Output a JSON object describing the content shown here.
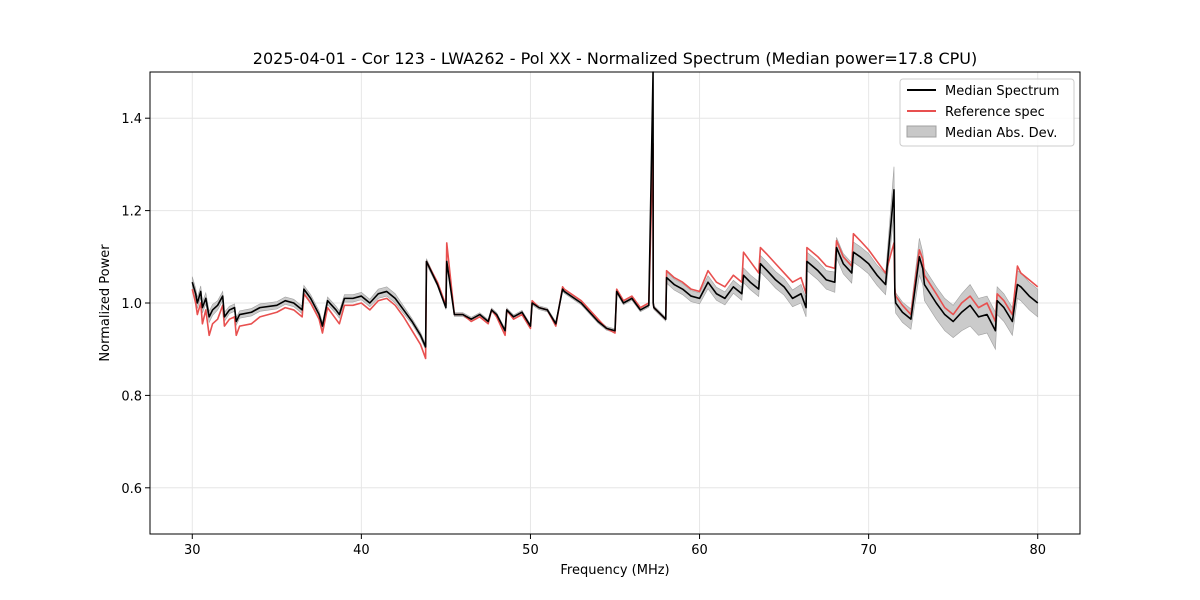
{
  "chart_data": {
    "type": "line",
    "title": "2025-04-01 - Cor 123 - LWA262 - Pol XX - Normalized Spectrum (Median power=17.8 CPU)",
    "xlabel": "Frequency (MHz)",
    "ylabel": "Normalized Power",
    "xlim": [
      27.5,
      82.5
    ],
    "ylim": [
      0.5,
      1.5
    ],
    "xticks": [
      30,
      40,
      50,
      60,
      70,
      80
    ],
    "yticks": [
      0.6,
      0.8,
      1.0,
      1.2,
      1.4
    ],
    "xtick_labels": [
      "30",
      "40",
      "50",
      "60",
      "70",
      "80"
    ],
    "ytick_labels": [
      "0.6",
      "0.8",
      "1.0",
      "1.2",
      "1.4"
    ],
    "grid": true,
    "legend_position": "top-right",
    "legend": [
      "Median Spectrum",
      "Reference spec",
      "Median Abs. Dev."
    ],
    "colors": {
      "median": "#000000",
      "reference": "#e8504f",
      "mad_fill": "#c8c8c8",
      "mad_edge": "#a0a0a0",
      "grid": "#e6e6e6"
    },
    "series": [
      {
        "name": "Median Spectrum",
        "x": [
          30.0,
          30.2,
          30.3,
          30.5,
          30.6,
          30.8,
          31.0,
          31.2,
          31.5,
          31.8,
          31.9,
          32.2,
          32.5,
          32.6,
          32.8,
          33.5,
          34.0,
          35.0,
          35.5,
          36.0,
          36.5,
          36.6,
          37.0,
          37.5,
          37.7,
          38.0,
          38.5,
          38.7,
          39.0,
          39.5,
          40.0,
          40.5,
          41.0,
          41.5,
          42.0,
          42.5,
          43.0,
          43.5,
          43.8,
          43.85,
          44.5,
          45.0,
          45.05,
          45.5,
          46.0,
          46.5,
          47.0,
          47.5,
          47.7,
          48.0,
          48.5,
          48.6,
          49.0,
          49.5,
          50.0,
          50.1,
          50.5,
          51.0,
          51.5,
          51.9,
          52.0,
          53.0,
          54.0,
          54.5,
          55.0,
          55.1,
          55.5,
          56.0,
          56.5,
          57.0,
          57.25,
          57.26,
          57.3,
          58.0,
          58.05,
          58.5,
          59.0,
          59.5,
          60.0,
          60.5,
          61.0,
          61.5,
          62.0,
          62.5,
          62.6,
          63.0,
          63.5,
          63.6,
          64.0,
          64.5,
          65.0,
          65.5,
          66.0,
          66.3,
          66.35,
          67.0,
          67.5,
          68.0,
          68.1,
          68.5,
          69.0,
          69.1,
          69.5,
          70.0,
          70.5,
          71.0,
          71.5,
          71.55,
          71.6,
          72.0,
          72.5,
          73.0,
          73.2,
          73.3,
          74.0,
          74.5,
          75.0,
          75.5,
          76.0,
          76.5,
          77.0,
          77.5,
          77.6,
          78.0,
          78.5,
          78.8,
          79.0,
          79.5,
          80.0
        ],
        "values": [
          1.045,
          1.02,
          1.0,
          1.025,
          0.99,
          1.01,
          0.97,
          0.985,
          0.995,
          1.015,
          0.97,
          0.985,
          0.99,
          0.96,
          0.975,
          0.98,
          0.99,
          0.995,
          1.005,
          1.0,
          0.985,
          1.03,
          1.01,
          0.975,
          0.95,
          1.005,
          0.985,
          0.975,
          1.01,
          1.01,
          1.015,
          1.0,
          1.02,
          1.025,
          1.01,
          0.985,
          0.96,
          0.93,
          0.905,
          1.09,
          1.04,
          0.99,
          1.09,
          0.975,
          0.975,
          0.965,
          0.975,
          0.96,
          0.985,
          0.975,
          0.94,
          0.985,
          0.97,
          0.98,
          0.95,
          1.0,
          0.99,
          0.985,
          0.955,
          1.03,
          1.025,
          1.0,
          0.96,
          0.945,
          0.94,
          1.025,
          1.0,
          1.01,
          0.985,
          0.995,
          1.5,
          1.0,
          0.99,
          0.965,
          1.055,
          1.04,
          1.03,
          1.015,
          1.01,
          1.045,
          1.02,
          1.01,
          1.035,
          1.02,
          1.06,
          1.045,
          1.03,
          1.085,
          1.07,
          1.05,
          1.035,
          1.01,
          1.02,
          0.99,
          1.09,
          1.07,
          1.05,
          1.045,
          1.12,
          1.085,
          1.065,
          1.11,
          1.1,
          1.085,
          1.06,
          1.04,
          1.245,
          1.02,
          1.0,
          0.98,
          0.965,
          1.1,
          1.075,
          1.04,
          1.0,
          0.975,
          0.96,
          0.98,
          0.995,
          0.97,
          0.975,
          0.94,
          1.005,
          0.99,
          0.96,
          1.04,
          1.035,
          1.015,
          1.0
        ]
      },
      {
        "name": "Reference spec",
        "x": [
          30.0,
          30.2,
          30.3,
          30.5,
          30.6,
          30.8,
          31.0,
          31.2,
          31.5,
          31.8,
          31.9,
          32.2,
          32.5,
          32.6,
          32.8,
          33.5,
          34.0,
          35.0,
          35.5,
          36.0,
          36.5,
          36.6,
          37.0,
          37.5,
          37.7,
          38.0,
          38.5,
          38.7,
          39.0,
          39.5,
          40.0,
          40.5,
          41.0,
          41.5,
          42.0,
          42.5,
          43.0,
          43.5,
          43.8,
          43.85,
          44.5,
          45.0,
          45.05,
          45.5,
          46.0,
          46.5,
          47.0,
          47.5,
          47.7,
          48.0,
          48.5,
          48.6,
          49.0,
          49.5,
          50.0,
          50.1,
          50.5,
          51.0,
          51.5,
          51.9,
          52.0,
          53.0,
          54.0,
          54.5,
          55.0,
          55.1,
          55.5,
          56.0,
          56.5,
          57.0,
          57.25,
          57.26,
          57.3,
          58.0,
          58.05,
          58.5,
          59.0,
          59.5,
          60.0,
          60.5,
          61.0,
          61.5,
          62.0,
          62.5,
          62.6,
          63.0,
          63.5,
          63.6,
          64.0,
          64.5,
          65.0,
          65.5,
          66.0,
          66.3,
          66.35,
          67.0,
          67.5,
          68.0,
          68.1,
          68.5,
          69.0,
          69.1,
          69.5,
          70.0,
          70.5,
          71.0,
          71.5,
          71.55,
          71.6,
          72.0,
          72.5,
          73.0,
          73.2,
          73.3,
          74.0,
          74.5,
          75.0,
          75.5,
          76.0,
          76.5,
          77.0,
          77.5,
          77.6,
          78.0,
          78.5,
          78.8,
          79.0,
          79.5,
          80.0
        ],
        "values": [
          1.03,
          1.0,
          0.975,
          1.0,
          0.955,
          0.985,
          0.93,
          0.955,
          0.965,
          0.995,
          0.95,
          0.965,
          0.97,
          0.93,
          0.95,
          0.955,
          0.97,
          0.98,
          0.99,
          0.985,
          0.97,
          1.02,
          1.0,
          0.965,
          0.935,
          0.99,
          0.965,
          0.955,
          0.995,
          0.995,
          1.0,
          0.985,
          1.005,
          1.01,
          0.995,
          0.97,
          0.94,
          0.91,
          0.88,
          1.09,
          1.045,
          0.995,
          1.13,
          0.975,
          0.975,
          0.96,
          0.97,
          0.955,
          0.985,
          0.97,
          0.93,
          0.985,
          0.965,
          0.975,
          0.945,
          1.005,
          0.99,
          0.985,
          0.95,
          1.035,
          1.03,
          1.005,
          0.965,
          0.945,
          0.935,
          1.03,
          1.005,
          1.015,
          0.99,
          1.0,
          1.345,
          1.0,
          0.99,
          0.965,
          1.07,
          1.055,
          1.045,
          1.03,
          1.025,
          1.07,
          1.045,
          1.035,
          1.06,
          1.045,
          1.11,
          1.09,
          1.065,
          1.12,
          1.105,
          1.085,
          1.065,
          1.045,
          1.055,
          1.02,
          1.12,
          1.1,
          1.08,
          1.075,
          1.135,
          1.1,
          1.08,
          1.15,
          1.135,
          1.115,
          1.09,
          1.065,
          1.13,
          1.03,
          1.015,
          0.995,
          0.975,
          1.115,
          1.095,
          1.06,
          1.02,
          0.99,
          0.975,
          1.0,
          1.015,
          0.99,
          1.0,
          0.96,
          1.02,
          1.005,
          0.975,
          1.08,
          1.065,
          1.05,
          1.035
        ]
      },
      {
        "name": "Median Abs. Dev.",
        "x": [
          30.0,
          30.2,
          30.3,
          30.5,
          30.6,
          30.8,
          31.0,
          31.2,
          31.5,
          31.8,
          31.9,
          32.2,
          32.5,
          32.6,
          32.8,
          33.5,
          34.0,
          35.0,
          35.5,
          36.0,
          36.5,
          36.6,
          37.0,
          37.5,
          37.7,
          38.0,
          38.5,
          38.7,
          39.0,
          39.5,
          40.0,
          40.5,
          41.0,
          41.5,
          42.0,
          42.5,
          43.0,
          43.5,
          43.8,
          43.85,
          44.5,
          45.0,
          45.05,
          45.5,
          46.0,
          46.5,
          47.0,
          47.5,
          47.7,
          48.0,
          48.5,
          48.6,
          49.0,
          49.5,
          50.0,
          50.1,
          50.5,
          51.0,
          51.5,
          51.9,
          52.0,
          53.0,
          54.0,
          54.5,
          55.0,
          55.1,
          55.5,
          56.0,
          56.5,
          57.0,
          57.25,
          57.26,
          57.3,
          58.0,
          58.05,
          58.5,
          59.0,
          59.5,
          60.0,
          60.5,
          61.0,
          61.5,
          62.0,
          62.5,
          62.6,
          63.0,
          63.5,
          63.6,
          64.0,
          64.5,
          65.0,
          65.5,
          66.0,
          66.3,
          66.35,
          67.0,
          67.5,
          68.0,
          68.1,
          68.5,
          69.0,
          69.1,
          69.5,
          70.0,
          70.5,
          71.0,
          71.5,
          71.55,
          71.6,
          72.0,
          72.5,
          73.0,
          73.2,
          73.3,
          74.0,
          74.5,
          75.0,
          75.5,
          76.0,
          76.5,
          77.0,
          77.5,
          77.6,
          78.0,
          78.5,
          78.8,
          79.0,
          79.5,
          80.0
        ],
        "spread": [
          0.012,
          0.012,
          0.012,
          0.012,
          0.012,
          0.012,
          0.012,
          0.012,
          0.01,
          0.01,
          0.01,
          0.008,
          0.008,
          0.008,
          0.008,
          0.008,
          0.008,
          0.008,
          0.008,
          0.008,
          0.008,
          0.008,
          0.008,
          0.008,
          0.008,
          0.008,
          0.008,
          0.008,
          0.008,
          0.008,
          0.008,
          0.008,
          0.01,
          0.01,
          0.01,
          0.008,
          0.006,
          0.006,
          0.006,
          0.006,
          0.004,
          0.004,
          0.004,
          0.004,
          0.004,
          0.004,
          0.004,
          0.004,
          0.004,
          0.004,
          0.004,
          0.004,
          0.004,
          0.004,
          0.004,
          0.004,
          0.004,
          0.004,
          0.004,
          0.004,
          0.004,
          0.004,
          0.004,
          0.004,
          0.004,
          0.004,
          0.004,
          0.004,
          0.004,
          0.004,
          0.004,
          0.004,
          0.004,
          0.004,
          0.012,
          0.012,
          0.012,
          0.012,
          0.012,
          0.014,
          0.014,
          0.014,
          0.014,
          0.014,
          0.016,
          0.016,
          0.016,
          0.018,
          0.018,
          0.018,
          0.018,
          0.018,
          0.02,
          0.02,
          0.02,
          0.02,
          0.02,
          0.022,
          0.022,
          0.022,
          0.022,
          0.022,
          0.022,
          0.022,
          0.022,
          0.022,
          0.05,
          0.022,
          0.022,
          0.022,
          0.022,
          0.04,
          0.035,
          0.035,
          0.035,
          0.035,
          0.035,
          0.04,
          0.045,
          0.04,
          0.04,
          0.04,
          0.03,
          0.03,
          0.03,
          0.03,
          0.03,
          0.03,
          0.03
        ]
      }
    ]
  }
}
